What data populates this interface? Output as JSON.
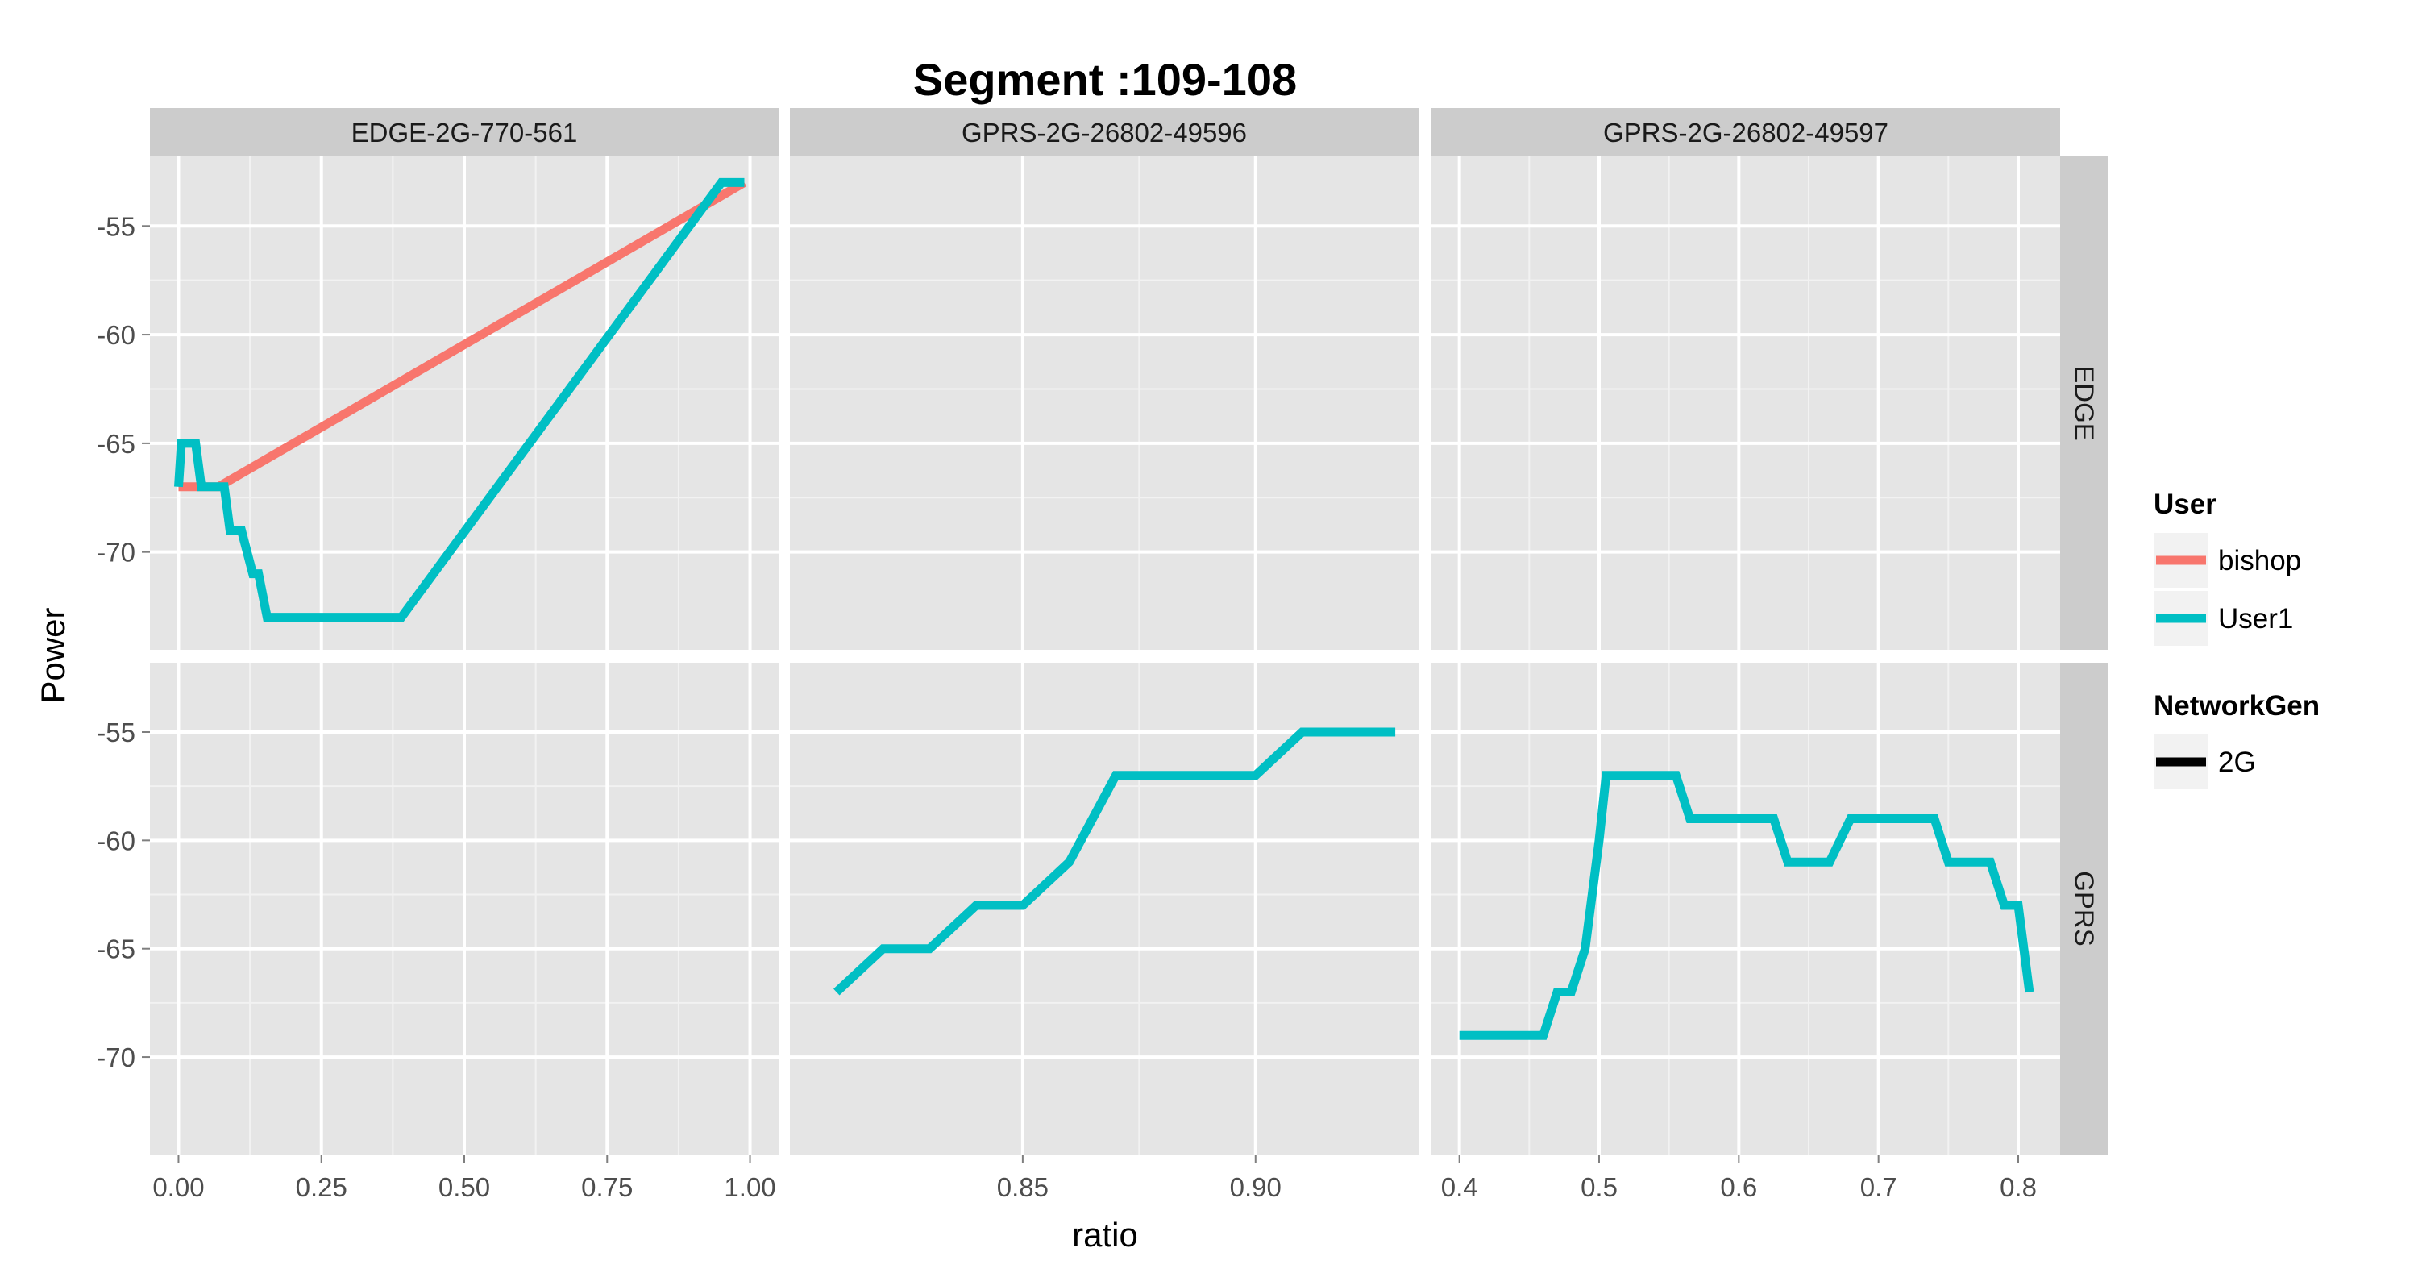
{
  "chart_data": {
    "type": "line",
    "title": "Segment :109-108",
    "xlabel": "ratio",
    "ylabel": "Power",
    "ylim": [
      -74.5,
      -51.8
    ],
    "y_ticks": [
      -55,
      -60,
      -65,
      -70
    ],
    "facet_columns": [
      {
        "label": "EDGE-2G-770-561",
        "xlim": [
          -0.05,
          1.05
        ],
        "ticks": [
          0.0,
          0.25,
          0.5,
          0.75,
          1.0
        ],
        "tick_labels": [
          "0.00",
          "0.25",
          "0.50",
          "0.75",
          "1.00"
        ]
      },
      {
        "label": "GPRS-2G-26802-49596",
        "xlim": [
          0.8,
          0.935
        ],
        "ticks": [
          0.85,
          0.9
        ],
        "tick_labels": [
          "0.85",
          "0.90"
        ]
      },
      {
        "label": "GPRS-2G-26802-49597",
        "xlim": [
          0.38,
          0.83
        ],
        "ticks": [
          0.4,
          0.5,
          0.6,
          0.7,
          0.8
        ],
        "tick_labels": [
          "0.4",
          "0.5",
          "0.6",
          "0.7",
          "0.8"
        ]
      }
    ],
    "facet_rows": [
      {
        "label": "EDGE"
      },
      {
        "label": "GPRS"
      }
    ],
    "series": [
      {
        "name": "bishop",
        "color": "#F8766D",
        "panel": [
          0,
          0
        ],
        "x": [
          0.0,
          0.02,
          0.04,
          0.07,
          0.99
        ],
        "y": [
          -67,
          -67,
          -67,
          -67,
          -53
        ]
      },
      {
        "name": "User1",
        "color": "#00BFC4",
        "panel": [
          0,
          0
        ],
        "x": [
          0.0,
          0.005,
          0.03,
          0.04,
          0.08,
          0.09,
          0.11,
          0.13,
          0.14,
          0.155,
          0.38,
          0.39,
          0.95,
          0.99
        ],
        "y": [
          -67,
          -65,
          -65,
          -67,
          -67,
          -69,
          -69,
          -71,
          -71,
          -73,
          -73,
          -73,
          -53,
          -53
        ]
      },
      {
        "name": "User1",
        "color": "#00BFC4",
        "panel": [
          1,
          1
        ],
        "x": [
          0.81,
          0.82,
          0.83,
          0.84,
          0.85,
          0.86,
          0.87,
          0.88,
          0.89,
          0.9,
          0.91,
          0.92,
          0.93
        ],
        "y": [
          -67,
          -65,
          -65,
          -63,
          -63,
          -61,
          -57,
          -57,
          -57,
          -57,
          -55,
          -55,
          -55
        ]
      },
      {
        "name": "User1",
        "color": "#00BFC4",
        "panel": [
          1,
          2
        ],
        "x": [
          0.4,
          0.46,
          0.47,
          0.48,
          0.49,
          0.5,
          0.505,
          0.515,
          0.535,
          0.555,
          0.565,
          0.625,
          0.635,
          0.665,
          0.68,
          0.7,
          0.74,
          0.75,
          0.78,
          0.79,
          0.8,
          0.808
        ],
        "y": [
          -69,
          -69,
          -67,
          -67,
          -65,
          -60,
          -57,
          -57,
          -57,
          -57,
          -59,
          -59,
          -61,
          -61,
          -59,
          -59,
          -59,
          -61,
          -61,
          -63,
          -63,
          -67
        ]
      }
    ],
    "legend": {
      "position": "right",
      "groups": [
        {
          "title": "User",
          "entries": [
            {
              "label": "bishop",
              "color": "#F8766D"
            },
            {
              "label": "User1",
              "color": "#00BFC4"
            }
          ]
        },
        {
          "title": "NetworkGen",
          "entries": [
            {
              "label": "2G",
              "color": "#000000"
            }
          ]
        }
      ]
    },
    "grid": true
  }
}
